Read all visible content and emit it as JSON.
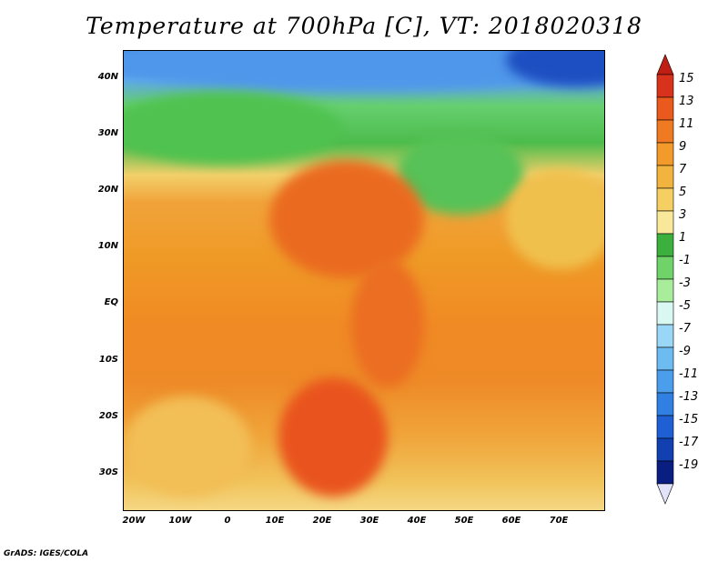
{
  "title": "Temperature at 700hPa [C], VT: 2018020318",
  "credit": "GrADS: IGES/COLA",
  "lat_labels": [
    "40N",
    "30N",
    "20N",
    "10N",
    "EQ",
    "10S",
    "20S",
    "30S"
  ],
  "lon_labels": [
    "20W",
    "10W",
    "0",
    "10E",
    "20E",
    "30E",
    "40E",
    "50E",
    "60E",
    "70E"
  ],
  "colorbar": {
    "labels": [
      "15",
      "13",
      "11",
      "9",
      "7",
      "5",
      "3",
      "1",
      "-1",
      "-3",
      "-5",
      "-7",
      "-9",
      "-11",
      "-13",
      "-15",
      "-17",
      "-19"
    ],
    "colors": [
      "#d8321c",
      "#ea5a1e",
      "#ef7a22",
      "#f29a2a",
      "#f2b43e",
      "#f6cf62",
      "#f9e89a",
      "#3cb03c",
      "#6fd36a",
      "#a8ec9c",
      "#daf8f2",
      "#9ad6f6",
      "#6cbcf2",
      "#4a9eec",
      "#3080e4",
      "#1e60d4",
      "#1240b0",
      "#0a1d80"
    ],
    "top_arrow_color": "#c01e14",
    "bottom_arrow_color": "#e2e2fa"
  }
}
